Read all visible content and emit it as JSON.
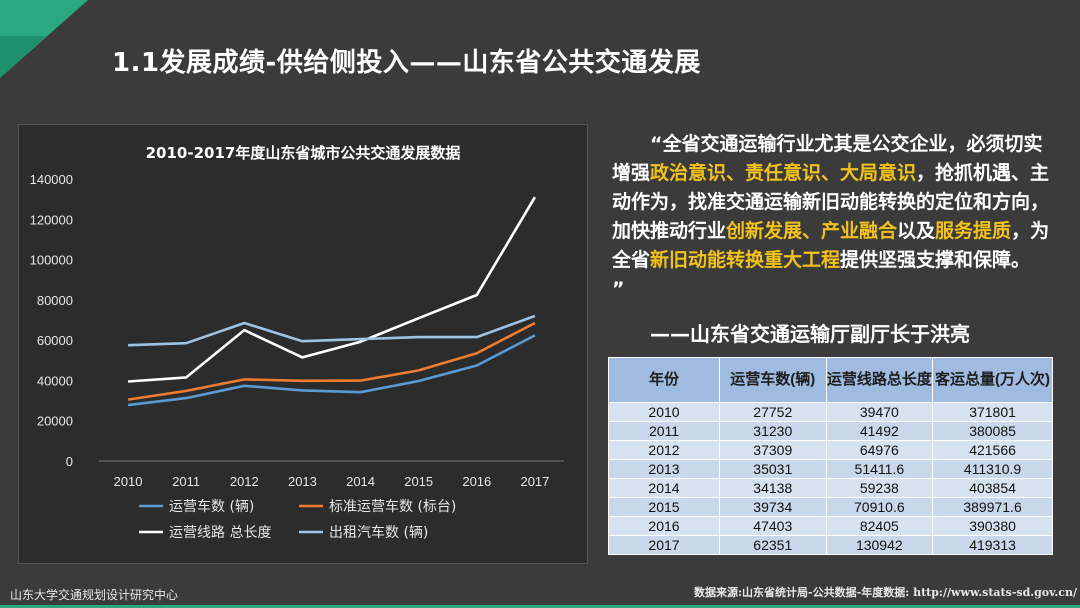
{
  "slide": {
    "title": "1.1发展成绩-供给侧投入——山东省公共交通发展"
  },
  "quote": {
    "open": "“",
    "p1": "全省交通运输行业尤其是公交企业，必须切实增强",
    "hl1": "政治意识、责任意识、大局意识",
    "p2": "，抢抓机遇、主动作为，找准交通运输新旧动能转换的定位和方向，加快推动行业",
    "hl2": "创新发展、产业融合",
    "p3": "以及",
    "hl3": "服务提质",
    "p4": "，为全省",
    "hl4": "新旧动能转换重大工程",
    "p5": "提供坚强支撑和保障。",
    "close": "”",
    "author": "——山东省交通运输厅副厅长于洪亮"
  },
  "table": {
    "headers": [
      "年份",
      "运营车数(辆)",
      "运营线路总长度",
      "客运总量(万人次)"
    ],
    "rows": [
      [
        "2010",
        "27752",
        "39470",
        "371801"
      ],
      [
        "2011",
        "31230",
        "41492",
        "380085"
      ],
      [
        "2012",
        "37309",
        "64976",
        "421566"
      ],
      [
        "2013",
        "35031",
        "51411.6",
        "411310.9"
      ],
      [
        "2014",
        "34138",
        "59238",
        "403854"
      ],
      [
        "2015",
        "39734",
        "70910.6",
        "389971.6"
      ],
      [
        "2016",
        "47403",
        "82405",
        "390380"
      ],
      [
        "2017",
        "62351",
        "130942",
        "419313"
      ]
    ]
  },
  "footer": {
    "left": "山东大学交通规划设计研究中心",
    "right": "数据来源:山东省统计局-公共数据-年度数据: http://www.stats-sd.gov.cn/"
  },
  "colors": {
    "accent": "#2aa880",
    "highlight": "#f2c21b",
    "series": [
      "#5b9bd5",
      "#ed7d31",
      "#ffffff",
      "#9dc3e6"
    ]
  },
  "chart_data": {
    "type": "line",
    "title": "2010-2017年度山东省城市公共交通发展数据",
    "categories": [
      "2010",
      "2011",
      "2012",
      "2013",
      "2014",
      "2015",
      "2016",
      "2017"
    ],
    "ylim": [
      0,
      140000
    ],
    "yticks": [
      "0",
      "20000",
      "40000",
      "60000",
      "80000",
      "100000",
      "120000",
      "140000"
    ],
    "grid": false,
    "legend_position": "bottom",
    "series": [
      {
        "name": "运营车数 (辆)",
        "values": [
          27752,
          31230,
          37309,
          35031,
          34138,
          39734,
          47403,
          62351
        ]
      },
      {
        "name": "标准运营车数 (标台)",
        "values": [
          30500,
          34800,
          40500,
          39800,
          39900,
          45000,
          53500,
          68500
        ]
      },
      {
        "name": "运营线路 总长度",
        "values": [
          39470,
          41492,
          64976,
          51411.6,
          59238,
          70910.6,
          82405,
          130942
        ]
      },
      {
        "name": "出租汽车数 (辆)",
        "values": [
          57500,
          58500,
          68500,
          59500,
          60500,
          61500,
          61500,
          72000
        ]
      }
    ]
  }
}
